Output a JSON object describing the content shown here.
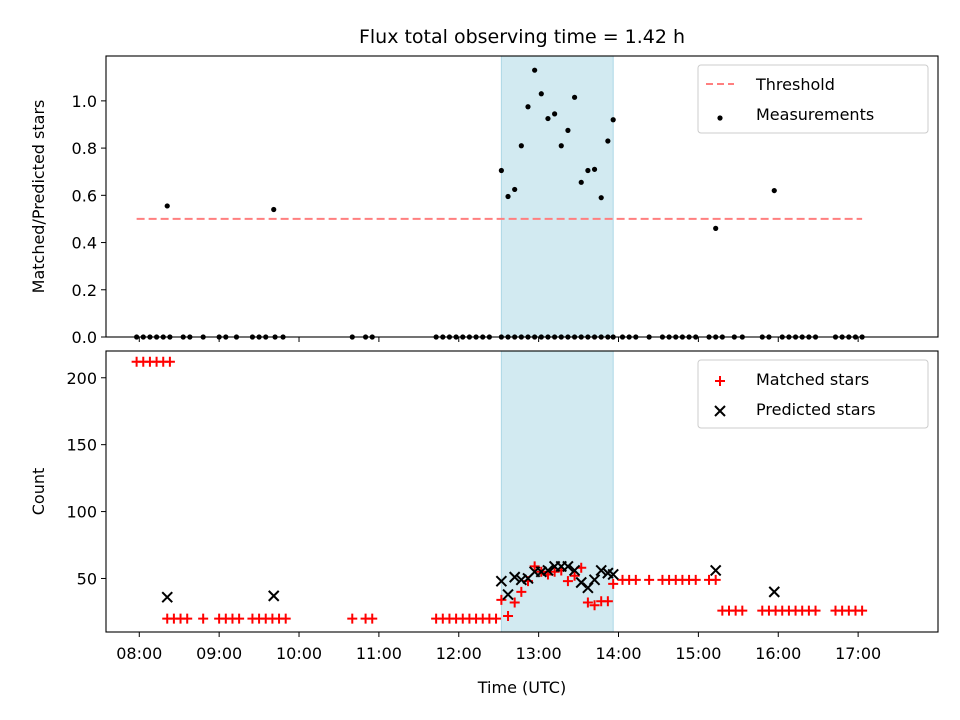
{
  "chart_data": [
    {
      "type": "scatter",
      "title": "Flux total observing time = 1.42 h",
      "xlabel": "",
      "ylabel": "Matched/Predicted stars",
      "xlim": [
        "07:35",
        "18:00"
      ],
      "ylim": [
        0,
        1.19
      ],
      "yticks": [
        0.0,
        0.2,
        0.4,
        0.6,
        0.8,
        1.0
      ],
      "ytick_labels": [
        "0.0",
        "0.2",
        "0.4",
        "0.6",
        "0.8",
        "1.0"
      ],
      "legend_position": "top-right",
      "highlight_span": {
        "x": [
          "12:32",
          "13:56"
        ],
        "color": "#add8e6"
      },
      "series": [
        {
          "name": "Threshold",
          "style": "dashed-line",
          "color": "#ff7f7f",
          "x": [
            "07:58",
            "17:03"
          ],
          "y": [
            0.5,
            0.5
          ]
        },
        {
          "name": "Measurements",
          "style": "dot",
          "color": "#000000",
          "x": [
            "07:58",
            "08:03",
            "08:08",
            "08:13",
            "08:18",
            "08:23",
            "08:33",
            "08:38",
            "08:48",
            "09:00",
            "09:05",
            "09:13",
            "09:25",
            "09:30",
            "09:35",
            "09:42",
            "09:48",
            "10:40",
            "10:50",
            "10:55",
            "11:43",
            "11:48",
            "11:53",
            "11:58",
            "12:03",
            "12:08",
            "12:13",
            "12:18",
            "12:23",
            "12:32",
            "12:37",
            "12:42",
            "12:47",
            "12:52",
            "12:57",
            "13:02",
            "13:07",
            "13:12",
            "13:17",
            "13:22",
            "13:27",
            "13:32",
            "13:37",
            "13:42",
            "13:47",
            "13:52",
            "13:56",
            "14:03",
            "14:08",
            "14:13",
            "14:23",
            "14:33",
            "14:38",
            "14:43",
            "14:48",
            "14:53",
            "14:58",
            "15:08",
            "15:13",
            "15:18",
            "15:27",
            "15:33",
            "15:48",
            "15:53",
            "16:03",
            "16:08",
            "16:13",
            "16:18",
            "16:23",
            "16:28",
            "16:43",
            "16:48",
            "16:53",
            "16:58",
            "17:03",
            "08:21",
            "09:41",
            "12:32",
            "12:37",
            "12:42",
            "12:47",
            "12:52",
            "12:57",
            "13:02",
            "13:07",
            "13:12",
            "13:17",
            "13:22",
            "13:27",
            "13:32",
            "13:37",
            "13:42",
            "13:47",
            "13:52",
            "13:56",
            "15:13",
            "15:57"
          ],
          "y": [
            0,
            0,
            0,
            0,
            0,
            0,
            0,
            0,
            0,
            0,
            0,
            0,
            0,
            0,
            0,
            0,
            0,
            0,
            0,
            0,
            0,
            0,
            0,
            0,
            0,
            0,
            0,
            0,
            0,
            0,
            0,
            0,
            0,
            0,
            0,
            0,
            0,
            0,
            0,
            0,
            0,
            0,
            0,
            0,
            0,
            0,
            0,
            0,
            0,
            0,
            0,
            0,
            0,
            0,
            0,
            0,
            0,
            0,
            0,
            0,
            0,
            0,
            0,
            0,
            0,
            0,
            0,
            0,
            0,
            0,
            0,
            0,
            0,
            0,
            0,
            0.555,
            0.54,
            0.705,
            0.595,
            0.625,
            0.81,
            0.975,
            1.13,
            1.03,
            0.925,
            0.945,
            0.81,
            0.875,
            1.015,
            0.655,
            0.705,
            0.71,
            0.59,
            0.83,
            0.92,
            0.46,
            0.62
          ]
        }
      ]
    },
    {
      "type": "scatter",
      "title": "",
      "xlabel": "Time (UTC)",
      "ylabel": "Count",
      "xlim": [
        "07:35",
        "18:00"
      ],
      "ylim": [
        10,
        220
      ],
      "xticks": [
        "08:00",
        "09:00",
        "10:00",
        "11:00",
        "12:00",
        "13:00",
        "14:00",
        "15:00",
        "16:00",
        "17:00"
      ],
      "yticks": [
        50,
        100,
        150,
        200
      ],
      "ytick_labels": [
        "50",
        "100",
        "150",
        "200"
      ],
      "legend_position": "top-right",
      "highlight_span": {
        "x": [
          "12:32",
          "13:56"
        ],
        "color": "#add8e6"
      },
      "series": [
        {
          "name": "Matched stars",
          "marker": "plus",
          "color": "#ff0000",
          "x": [
            "07:58",
            "08:03",
            "08:08",
            "08:13",
            "08:18",
            "08:23",
            "08:21",
            "08:26",
            "08:31",
            "08:36",
            "08:48",
            "09:00",
            "09:05",
            "09:10",
            "09:15",
            "09:25",
            "09:30",
            "09:35",
            "09:40",
            "09:45",
            "09:50",
            "10:40",
            "10:50",
            "10:55",
            "11:43",
            "11:48",
            "11:53",
            "11:58",
            "12:03",
            "12:08",
            "12:13",
            "12:18",
            "12:23",
            "12:28",
            "12:32",
            "12:37",
            "12:42",
            "12:47",
            "12:52",
            "12:57",
            "13:02",
            "13:07",
            "13:12",
            "13:17",
            "13:22",
            "13:27",
            "13:32",
            "13:37",
            "13:42",
            "13:47",
            "13:52",
            "13:56",
            "14:03",
            "14:08",
            "14:13",
            "14:23",
            "14:33",
            "14:38",
            "14:43",
            "14:48",
            "14:53",
            "14:58",
            "15:08",
            "15:13",
            "15:18",
            "15:23",
            "15:28",
            "15:33",
            "15:48",
            "15:53",
            "15:58",
            "16:03",
            "16:08",
            "16:13",
            "16:18",
            "16:23",
            "16:28",
            "16:43",
            "16:48",
            "16:53",
            "16:58",
            "17:03"
          ],
          "y": [
            212,
            212,
            212,
            212,
            212,
            212,
            20,
            20,
            20,
            20,
            20,
            20,
            20,
            20,
            20,
            20,
            20,
            20,
            20,
            20,
            20,
            20,
            20,
            20,
            20,
            20,
            20,
            20,
            20,
            20,
            20,
            20,
            20,
            20,
            34,
            22,
            32,
            40,
            48,
            59,
            55,
            53,
            55,
            56,
            48,
            52,
            58,
            32,
            30,
            33,
            33,
            46,
            49,
            49,
            49,
            49,
            49,
            49,
            49,
            49,
            49,
            49,
            49,
            49,
            26,
            26,
            26,
            26,
            26,
            26,
            26,
            26,
            26,
            26,
            26,
            26,
            26,
            26,
            26,
            26,
            26,
            26
          ]
        },
        {
          "name": "Predicted stars",
          "marker": "x",
          "color": "#000000",
          "x": [
            "08:21",
            "09:41",
            "12:32",
            "12:37",
            "12:42",
            "12:47",
            "12:52",
            "12:57",
            "13:02",
            "13:07",
            "13:12",
            "13:17",
            "13:22",
            "13:27",
            "13:32",
            "13:37",
            "13:42",
            "13:47",
            "13:52",
            "13:56",
            "15:13",
            "15:57"
          ],
          "y": [
            36,
            37,
            48,
            38,
            51,
            49,
            50,
            55,
            55,
            56,
            59,
            59,
            59,
            56,
            47,
            43,
            49,
            56,
            54,
            53,
            56,
            40
          ]
        }
      ]
    }
  ]
}
